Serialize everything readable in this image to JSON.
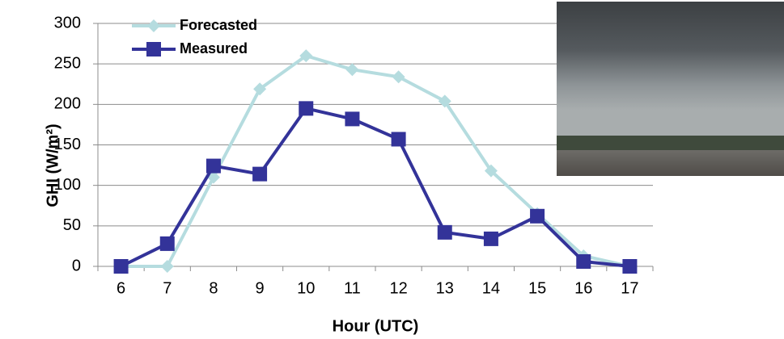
{
  "chart_data": {
    "type": "line",
    "x_label": "Hour (UTC)",
    "y_label": "GHI (W/m²)",
    "categories": [
      "6",
      "7",
      "8",
      "9",
      "10",
      "11",
      "12",
      "13",
      "14",
      "15",
      "16",
      "17"
    ],
    "series": [
      {
        "name": "Forecasted",
        "color": "#b5dcdf",
        "marker": "diamond",
        "values": [
          0,
          0,
          110,
          219,
          260,
          243,
          234,
          204,
          118,
          65,
          13,
          0
        ]
      },
      {
        "name": "Measured",
        "color": "#333399",
        "marker": "square",
        "values": [
          0,
          28,
          124,
          114,
          195,
          182,
          157,
          42,
          34,
          62,
          6,
          0
        ]
      }
    ],
    "ylim": [
      0,
      300
    ],
    "yticks": [
      0,
      50,
      100,
      150,
      200,
      250,
      300
    ],
    "grid": true,
    "legend": "top-left"
  }
}
